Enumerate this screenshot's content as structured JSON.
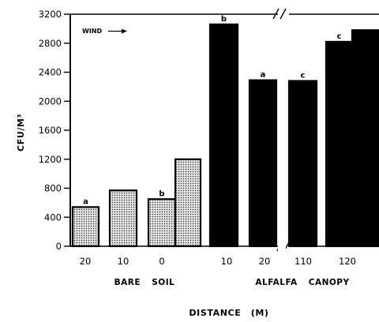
{
  "chart_data": {
    "type": "bar",
    "xlabel": "DISTANCE (M)",
    "ylabel": "CFU/M³",
    "ylim": [
      0,
      3200
    ],
    "yticks": [
      0,
      400,
      800,
      1200,
      1600,
      2000,
      2400,
      2800,
      3200
    ],
    "annotation": "WIND",
    "groups": [
      {
        "label": "BARE SOIL",
        "fill": "stippled"
      },
      {
        "label": "ALFALFA CANOPY",
        "fill": "solid"
      }
    ],
    "bars": [
      {
        "x_label": "20",
        "group": "BARE SOIL",
        "value": 540,
        "letter": "a"
      },
      {
        "x_label": "10",
        "group": "BARE SOIL",
        "value": 770,
        "letter": ""
      },
      {
        "x_label": "0",
        "group": "BARE SOIL",
        "value": 650,
        "letter": "b"
      },
      {
        "x_label": "",
        "group": "BARE SOIL",
        "value": 1200,
        "letter": ""
      },
      {
        "x_label": "10",
        "group": "ALFALFA CANOPY",
        "value": 3060,
        "letter": "b"
      },
      {
        "x_label": "20",
        "group": "ALFALFA CANOPY",
        "value": 2290,
        "letter": "a"
      },
      {
        "x_label": "110",
        "group": "ALFALFA CANOPY",
        "value": 2280,
        "letter": "c"
      },
      {
        "x_label": "120",
        "group": "ALFALFA CANOPY",
        "value": 2820,
        "letter": "c"
      },
      {
        "x_label": "",
        "group": "ALFALFA CANOPY",
        "value": 2980,
        "letter": ""
      }
    ],
    "colors": {
      "solid_bar": "#000000",
      "stipple_bg": "#e4e4e4",
      "stipple_dot": "#333333"
    }
  }
}
